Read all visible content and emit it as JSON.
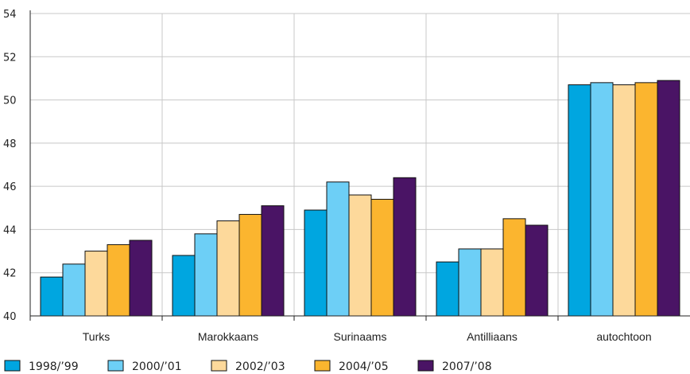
{
  "chart_data": {
    "type": "bar",
    "title": "",
    "xlabel": "",
    "ylabel": "",
    "categories": [
      "Turks",
      "Marokkaans",
      "Surinaams",
      "Antilliaans",
      "autochtoon"
    ],
    "ylim": [
      40,
      54
    ],
    "yticks": [
      40,
      42,
      44,
      46,
      48,
      50,
      52,
      54
    ],
    "grid": true,
    "legend_position": "bottom-left",
    "series": [
      {
        "name": "1998/’99",
        "color": "#00a6e0",
        "values": [
          41.8,
          42.8,
          44.9,
          42.5,
          50.7
        ]
      },
      {
        "name": "2000/’01",
        "color": "#6dcff6",
        "values": [
          42.4,
          43.8,
          46.2,
          43.1,
          50.8
        ]
      },
      {
        "name": "2002/’03",
        "color": "#fdd99b",
        "values": [
          43.0,
          44.4,
          45.6,
          43.1,
          50.7
        ]
      },
      {
        "name": "2004/’05",
        "color": "#fbb52f",
        "values": [
          43.3,
          44.7,
          45.4,
          44.5,
          50.8
        ]
      },
      {
        "name": "2007/’08",
        "color": "#4a1465",
        "values": [
          43.5,
          45.1,
          46.4,
          44.2,
          50.9
        ]
      }
    ]
  }
}
